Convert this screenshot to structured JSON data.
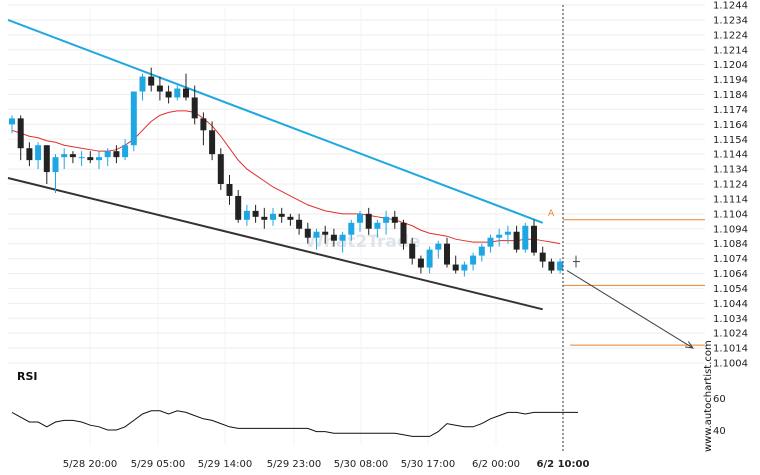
{
  "chart_data": {
    "type": "candlestick",
    "price_axis": {
      "ticks": [
        "1.1244",
        "1.1234",
        "1.1224",
        "1.1214",
        "1.1204",
        "1.1194",
        "1.1184",
        "1.1174",
        "1.1164",
        "1.1154",
        "1.1144",
        "1.1134",
        "1.1124",
        "1.1114",
        "1.1104",
        "1.1094",
        "1.1084",
        "1.1074",
        "1.1064",
        "1.1054",
        "1.1044",
        "1.1034",
        "1.1024",
        "1.1014",
        "1.1004"
      ],
      "range": [
        1.1004,
        1.1244
      ]
    },
    "time_axis": {
      "ticks": [
        "5/28 20:00",
        "5/29 05:00",
        "5/29 14:00",
        "5/29 23:00",
        "5/30 08:00",
        "5/30 17:00",
        "6/2 00:00",
        "6/2 10:00"
      ],
      "highlighted_tick": "6/2 10:00"
    },
    "candles": [
      [
        1.1164,
        1.117,
        1.1158,
        1.1168
      ],
      [
        1.1168,
        1.117,
        1.114,
        1.1148
      ],
      [
        1.1148,
        1.1152,
        1.1136,
        1.114
      ],
      [
        1.114,
        1.1152,
        1.1134,
        1.115
      ],
      [
        1.115,
        1.115,
        1.1124,
        1.1132
      ],
      [
        1.1132,
        1.1144,
        1.1118,
        1.1142
      ],
      [
        1.1142,
        1.1148,
        1.1134,
        1.1144
      ],
      [
        1.1144,
        1.1146,
        1.1138,
        1.1142
      ],
      [
        1.1142,
        1.1146,
        1.1136,
        1.1142
      ],
      [
        1.1142,
        1.1146,
        1.1138,
        1.114
      ],
      [
        1.114,
        1.1146,
        1.1134,
        1.1142
      ],
      [
        1.1142,
        1.1148,
        1.1136,
        1.1146
      ],
      [
        1.1146,
        1.115,
        1.1138,
        1.1142
      ],
      [
        1.1142,
        1.1154,
        1.114,
        1.115
      ],
      [
        1.115,
        1.1186,
        1.1146,
        1.1186
      ],
      [
        1.1186,
        1.1198,
        1.118,
        1.1196
      ],
      [
        1.1196,
        1.1202,
        1.1186,
        1.119
      ],
      [
        1.119,
        1.1196,
        1.118,
        1.1186
      ],
      [
        1.1186,
        1.119,
        1.1178,
        1.1182
      ],
      [
        1.1182,
        1.119,
        1.118,
        1.1188
      ],
      [
        1.1188,
        1.1198,
        1.118,
        1.1182
      ],
      [
        1.1182,
        1.119,
        1.1164,
        1.1168
      ],
      [
        1.1168,
        1.1172,
        1.115,
        1.116
      ],
      [
        1.116,
        1.1166,
        1.114,
        1.1144
      ],
      [
        1.1144,
        1.1148,
        1.112,
        1.1124
      ],
      [
        1.1124,
        1.113,
        1.111,
        1.1116
      ],
      [
        1.1116,
        1.112,
        1.1098,
        1.11
      ],
      [
        1.11,
        1.111,
        1.1096,
        1.1106
      ],
      [
        1.1106,
        1.111,
        1.1098,
        1.1102
      ],
      [
        1.1102,
        1.1108,
        1.1094,
        1.11
      ],
      [
        1.11,
        1.1108,
        1.1096,
        1.1104
      ],
      [
        1.1104,
        1.1108,
        1.1098,
        1.1102
      ],
      [
        1.1102,
        1.1104,
        1.1096,
        1.11
      ],
      [
        1.11,
        1.1104,
        1.109,
        1.1094
      ],
      [
        1.1094,
        1.1098,
        1.1084,
        1.1088
      ],
      [
        1.1088,
        1.1094,
        1.108,
        1.1092
      ],
      [
        1.1092,
        1.1096,
        1.1084,
        1.109
      ],
      [
        1.109,
        1.1094,
        1.1082,
        1.1086
      ],
      [
        1.1086,
        1.1092,
        1.1078,
        1.109
      ],
      [
        1.109,
        1.11,
        1.1086,
        1.1098
      ],
      [
        1.1098,
        1.1106,
        1.1092,
        1.1104
      ],
      [
        1.1104,
        1.1108,
        1.109,
        1.1094
      ],
      [
        1.1094,
        1.11,
        1.1088,
        1.1098
      ],
      [
        1.1098,
        1.1106,
        1.109,
        1.1102
      ],
      [
        1.1102,
        1.1106,
        1.1094,
        1.1098
      ],
      [
        1.1098,
        1.11,
        1.108,
        1.1084
      ],
      [
        1.1084,
        1.1088,
        1.107,
        1.1074
      ],
      [
        1.1074,
        1.1076,
        1.1064,
        1.1068
      ],
      [
        1.1068,
        1.1082,
        1.1064,
        1.108
      ],
      [
        1.108,
        1.1086,
        1.1074,
        1.1084
      ],
      [
        1.1084,
        1.1088,
        1.1068,
        1.107
      ],
      [
        1.107,
        1.1076,
        1.1064,
        1.1066
      ],
      [
        1.1066,
        1.1072,
        1.1062,
        1.107
      ],
      [
        1.107,
        1.1078,
        1.1066,
        1.1076
      ],
      [
        1.1076,
        1.1084,
        1.1072,
        1.1082
      ],
      [
        1.1082,
        1.109,
        1.1078,
        1.1088
      ],
      [
        1.1088,
        1.1094,
        1.1082,
        1.109
      ],
      [
        1.109,
        1.1096,
        1.1084,
        1.1092
      ],
      [
        1.1092,
        1.1096,
        1.1078,
        1.108
      ],
      [
        1.108,
        1.1098,
        1.1078,
        1.1096
      ],
      [
        1.1096,
        1.11,
        1.1076,
        1.1078
      ],
      [
        1.1078,
        1.1082,
        1.1068,
        1.1072
      ],
      [
        1.1072,
        1.1074,
        1.1064,
        1.1066
      ],
      [
        1.1066,
        1.1074,
        1.1064,
        1.1072
      ]
    ],
    "moving_average": [
      1.116,
      1.1158,
      1.1156,
      1.1155,
      1.1153,
      1.1152,
      1.115,
      1.1149,
      1.1148,
      1.1147,
      1.1146,
      1.1146,
      1.1147,
      1.115,
      1.1154,
      1.116,
      1.1166,
      1.117,
      1.1172,
      1.1173,
      1.1173,
      1.1172,
      1.1168,
      1.1163,
      1.1156,
      1.1148,
      1.114,
      1.1134,
      1.113,
      1.1126,
      1.1122,
      1.1119,
      1.1116,
      1.1113,
      1.111,
      1.1108,
      1.1106,
      1.1105,
      1.1104,
      1.1104,
      1.1104,
      1.1103,
      1.1102,
      1.1101,
      1.11,
      1.1098,
      1.1096,
      1.1093,
      1.1091,
      1.109,
      1.1089,
      1.1087,
      1.1086,
      1.1085,
      1.1085,
      1.1085,
      1.1086,
      1.1086,
      1.1086,
      1.1087,
      1.1087,
      1.1086,
      1.1085,
      1.1084
    ],
    "channel_upper": {
      "from": [
        0,
        1.1234
      ],
      "to": [
        61,
        1.1098
      ]
    },
    "channel_lower": {
      "from": [
        0,
        1.1128
      ],
      "to": [
        61,
        1.104
      ]
    },
    "forecast_arrow": {
      "from": [
        62,
        1.1066
      ],
      "to": [
        75,
        1.1014
      ]
    },
    "levels": [
      {
        "price": 1.11,
        "color": "#e8822d",
        "label": "A"
      },
      {
        "price": 1.1056,
        "color": "#e8822d"
      },
      {
        "price": 1.1016,
        "color": "#e8822d"
      }
    ],
    "rsi": {
      "label": "RSI",
      "ticks": [
        "60",
        "40"
      ],
      "values": [
        51,
        48,
        45,
        45,
        42,
        45,
        46,
        46,
        45,
        43,
        42,
        40,
        40,
        42,
        46,
        50,
        52,
        52,
        50,
        52,
        51,
        49,
        47,
        46,
        44,
        42,
        41,
        41,
        41,
        41,
        41,
        41,
        41,
        41,
        41,
        39,
        39,
        38,
        38,
        38,
        38,
        38,
        38,
        38,
        38,
        37,
        36,
        36,
        36,
        39,
        44,
        43,
        42,
        42,
        44,
        47,
        49,
        51,
        51,
        50,
        51,
        51,
        51,
        51
      ]
    },
    "colors": {
      "bull": "#1fa7e4",
      "bear": "#222222",
      "upper_line": "#21a8e0",
      "lower_line": "#333333",
      "ma": "#e0302b",
      "level": "#e8822d",
      "arrow": "#444444"
    },
    "watermark": "www.autochartist.com",
    "logo": "What2Trade"
  }
}
